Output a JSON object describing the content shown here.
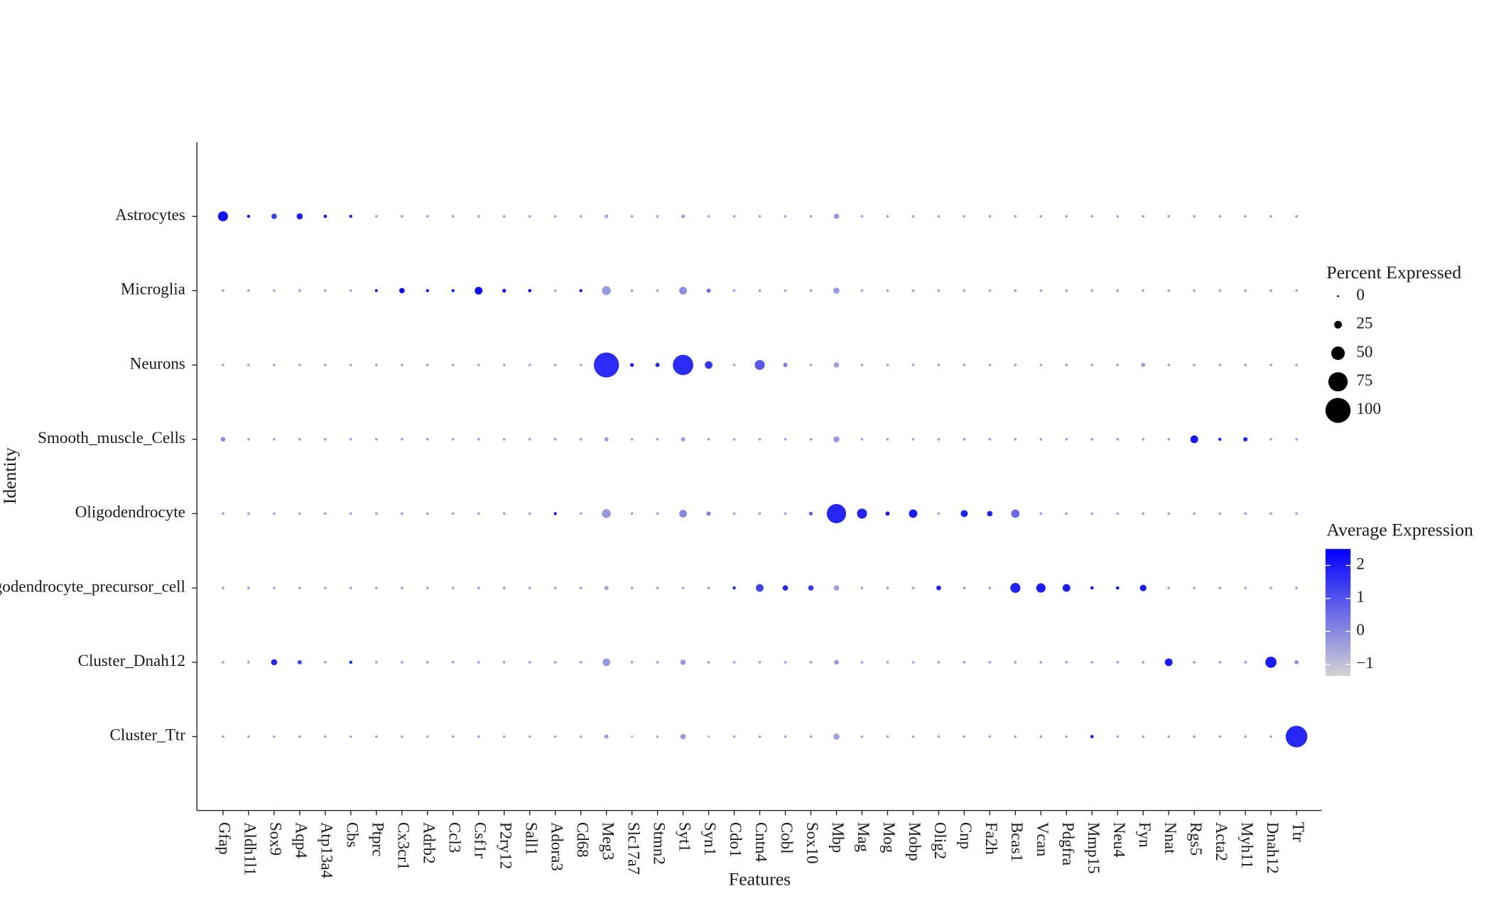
{
  "chart_data": {
    "type": "dot",
    "x_label": "Features",
    "y_label": "Identity",
    "categories": [
      "Gfap",
      "Aldh1l1",
      "Sox9",
      "Aqp4",
      "Atp13a4",
      "Cbs",
      "Ptprc",
      "Cx3cr1",
      "Adrb2",
      "Ccl3",
      "Csf1r",
      "P2ry12",
      "Sall1",
      "Adora3",
      "Cd68",
      "Meg3",
      "Slc17a7",
      "Stmn2",
      "Syt1",
      "Syn1",
      "Cdo1",
      "Cntn4",
      "Cobl",
      "Sox10",
      "Mbp",
      "Mag",
      "Mog",
      "Mobp",
      "Olig2",
      "Cnp",
      "Fa2h",
      "Bcas1",
      "Vcan",
      "Pdgfra",
      "Mmp15",
      "Neu4",
      "Fyn",
      "Nnat",
      "Rgs5",
      "Acta2",
      "Myh11",
      "Dnah12",
      "Ttr"
    ],
    "series": [
      {
        "name": "Astrocytes",
        "percent": [
          35,
          5,
          15,
          18,
          6,
          5,
          3,
          3,
          3,
          3,
          3,
          3,
          3,
          3,
          3,
          8,
          3,
          3,
          8,
          3,
          3,
          3,
          3,
          3,
          15,
          3,
          3,
          3,
          3,
          3,
          3,
          3,
          3,
          3,
          3,
          3,
          3,
          3,
          3,
          3,
          3,
          3,
          3
        ],
        "average": [
          2.2,
          2.3,
          1.5,
          2,
          2.2,
          2,
          -0.4,
          -0.4,
          -0.4,
          -0.4,
          -0.4,
          -0.4,
          -0.4,
          -0.4,
          -0.4,
          -0.6,
          -0.4,
          -0.4,
          -0.5,
          -0.4,
          -0.4,
          -0.4,
          -0.4,
          -0.4,
          -0.3,
          -0.4,
          -0.4,
          -0.4,
          -0.4,
          -0.4,
          -0.4,
          -0.4,
          -0.4,
          -0.4,
          -0.4,
          -0.4,
          -0.4,
          -0.4,
          -0.4,
          -0.4,
          -0.4,
          -0.4,
          -0.4
        ]
      },
      {
        "name": "Microglia",
        "percent": [
          3,
          3,
          3,
          3,
          3,
          3,
          4,
          15,
          5,
          5,
          25,
          8,
          6,
          3,
          5,
          30,
          3,
          3,
          25,
          10,
          3,
          3,
          3,
          3,
          18,
          3,
          3,
          3,
          3,
          3,
          3,
          3,
          3,
          3,
          3,
          3,
          3,
          3,
          3,
          3,
          3,
          3,
          3
        ],
        "average": [
          -0.4,
          -0.4,
          -0.4,
          -0.4,
          -0.4,
          -0.4,
          2.3,
          2.3,
          2.3,
          2.3,
          2.3,
          2.3,
          2.3,
          -0.4,
          2.3,
          -0.3,
          -0.4,
          -0.4,
          -0.1,
          0.5,
          -0.4,
          -0.4,
          -0.4,
          -0.4,
          -0.3,
          -0.4,
          -0.4,
          -0.4,
          -0.4,
          -0.4,
          -0.4,
          -0.4,
          -0.4,
          -0.4,
          -0.4,
          -0.4,
          -0.4,
          -0.4,
          -0.4,
          -0.4,
          -0.4,
          -0.4,
          -0.4
        ]
      },
      {
        "name": "Neurons",
        "percent": [
          3,
          3,
          3,
          3,
          3,
          3,
          3,
          3,
          3,
          3,
          3,
          3,
          3,
          3,
          3,
          100,
          8,
          10,
          80,
          25,
          3,
          35,
          10,
          3,
          15,
          3,
          3,
          3,
          3,
          3,
          3,
          3,
          3,
          3,
          3,
          3,
          10,
          3,
          3,
          3,
          3,
          3,
          3
        ],
        "average": [
          -0.4,
          -0.4,
          -0.4,
          -0.4,
          -0.4,
          -0.4,
          -0.4,
          -0.4,
          -0.4,
          -0.4,
          -0.4,
          -0.4,
          -0.4,
          -0.4,
          -0.4,
          1.7,
          2,
          1.8,
          1.7,
          1.5,
          -0.4,
          0.9,
          0.2,
          -0.4,
          -0.4,
          -0.4,
          -0.4,
          -0.4,
          -0.4,
          -0.4,
          -0.4,
          -0.4,
          -0.4,
          -0.4,
          -0.4,
          -0.4,
          -0.4,
          -0.4,
          -0.4,
          -0.4,
          -0.4,
          -0.4,
          -0.4
        ]
      },
      {
        "name": "Smooth_muscle_Cells",
        "percent": [
          12,
          3,
          3,
          3,
          3,
          3,
          3,
          3,
          3,
          3,
          3,
          3,
          3,
          3,
          3,
          10,
          3,
          3,
          10,
          3,
          3,
          3,
          3,
          3,
          18,
          3,
          3,
          3,
          3,
          3,
          3,
          3,
          3,
          3,
          3,
          3,
          3,
          3,
          25,
          5,
          10,
          3,
          3
        ],
        "average": [
          0,
          -0.4,
          -0.4,
          -0.4,
          -0.4,
          -0.4,
          -0.4,
          -0.4,
          -0.4,
          -0.4,
          -0.4,
          -0.4,
          -0.4,
          -0.4,
          -0.4,
          -0.3,
          -0.4,
          -0.4,
          -0.3,
          -0.4,
          -0.4,
          -0.4,
          -0.4,
          -0.4,
          -0.3,
          -0.4,
          -0.4,
          -0.4,
          -0.4,
          -0.4,
          -0.4,
          -0.4,
          -0.4,
          -0.4,
          -0.4,
          -0.4,
          -0.4,
          -0.4,
          2.1,
          2,
          2,
          -0.4,
          -0.4
        ]
      },
      {
        "name": "Oligodendrocyte",
        "percent": [
          3,
          3,
          3,
          3,
          3,
          3,
          3,
          3,
          3,
          3,
          3,
          3,
          3,
          5,
          3,
          30,
          3,
          3,
          25,
          10,
          3,
          3,
          3,
          8,
          75,
          35,
          10,
          28,
          3,
          22,
          15,
          28,
          3,
          3,
          3,
          3,
          3,
          3,
          3,
          3,
          3,
          3,
          3
        ],
        "average": [
          -0.4,
          -0.4,
          -0.4,
          -0.4,
          -0.4,
          -0.4,
          -0.4,
          -0.4,
          -0.4,
          -0.4,
          -0.4,
          -0.4,
          -0.4,
          2.2,
          -0.4,
          -0.3,
          -0.4,
          -0.4,
          0,
          0.2,
          -0.4,
          -0.4,
          -0.4,
          0.8,
          1.8,
          1.9,
          2,
          2,
          -0.4,
          1.9,
          1.9,
          0.6,
          -0.4,
          -0.4,
          -0.4,
          -0.4,
          -0.4,
          -0.4,
          -0.4,
          -0.4,
          -0.4,
          -0.4,
          -0.4
        ]
      },
      {
        "name": "Oligodendrocyte_precursor_cell",
        "percent": [
          3,
          3,
          3,
          3,
          3,
          3,
          3,
          3,
          3,
          3,
          3,
          3,
          3,
          3,
          3,
          10,
          3,
          3,
          3,
          3,
          5,
          25,
          15,
          15,
          15,
          3,
          3,
          3,
          12,
          3,
          3,
          35,
          32,
          25,
          6,
          6,
          20,
          3,
          3,
          3,
          3,
          3,
          3
        ],
        "average": [
          -0.4,
          -0.4,
          -0.4,
          -0.4,
          -0.4,
          -0.4,
          -0.4,
          -0.4,
          -0.4,
          -0.4,
          -0.4,
          -0.4,
          -0.4,
          -0.4,
          -0.4,
          -0.5,
          -0.4,
          -0.4,
          -0.4,
          -0.4,
          2,
          1.3,
          1.8,
          1.5,
          -0.4,
          -0.4,
          -0.4,
          -0.4,
          2,
          -0.4,
          -0.4,
          1.9,
          2,
          2,
          2,
          2.1,
          2,
          -0.4,
          -0.4,
          -0.4,
          -0.4,
          -0.4,
          -0.4
        ]
      },
      {
        "name": "Cluster_Dnah12",
        "percent": [
          3,
          3,
          18,
          10,
          3,
          5,
          3,
          3,
          3,
          3,
          3,
          3,
          3,
          3,
          3,
          25,
          3,
          3,
          15,
          3,
          3,
          3,
          3,
          3,
          12,
          3,
          3,
          3,
          3,
          3,
          3,
          3,
          3,
          3,
          3,
          3,
          3,
          25,
          3,
          3,
          3,
          40,
          10
        ],
        "average": [
          -0.4,
          -0.4,
          1.8,
          1.2,
          -0.4,
          2,
          -0.4,
          -0.4,
          -0.4,
          -0.4,
          -0.4,
          -0.4,
          -0.4,
          -0.4,
          -0.4,
          -0.3,
          -0.4,
          -0.4,
          -0.3,
          -0.4,
          -0.4,
          -0.4,
          -0.4,
          -0.4,
          -0.3,
          -0.4,
          -0.4,
          -0.4,
          -0.4,
          -0.4,
          -0.4,
          -0.4,
          -0.4,
          -0.4,
          -0.4,
          -0.4,
          -0.4,
          2,
          -0.4,
          -0.4,
          -0.4,
          2,
          -0.2
        ]
      },
      {
        "name": "Cluster_Ttr",
        "percent": [
          3,
          3,
          3,
          3,
          3,
          3,
          3,
          3,
          3,
          3,
          3,
          3,
          3,
          3,
          3,
          10,
          1,
          3,
          15,
          1,
          3,
          3,
          3,
          3,
          18,
          3,
          3,
          3,
          3,
          3,
          3,
          3,
          3,
          3,
          6,
          3,
          3,
          3,
          3,
          3,
          3,
          3,
          85
        ],
        "average": [
          -0.4,
          -0.4,
          -0.4,
          -0.4,
          -0.4,
          -0.4,
          -0.4,
          -0.4,
          -0.4,
          -0.4,
          -0.4,
          -0.4,
          -0.4,
          -0.4,
          -0.4,
          -0.4,
          -0.6,
          -0.4,
          -0.3,
          -0.6,
          -0.4,
          -0.4,
          -0.4,
          -0.4,
          -0.4,
          -0.4,
          -0.4,
          -0.4,
          -0.4,
          -0.4,
          -0.4,
          -0.4,
          -0.4,
          -0.4,
          2,
          -0.4,
          -0.4,
          -0.4,
          -0.4,
          -0.4,
          -0.4,
          -0.4,
          1.8
        ]
      }
    ],
    "size_legend": {
      "title": "Percent Expressed",
      "values": [
        0,
        25,
        50,
        75,
        100
      ],
      "color": "#000000"
    },
    "color_legend": {
      "title": "Average Expression",
      "lim": [
        -1.35,
        2.5
      ],
      "ticks": [
        {
          "value": -1,
          "label": "−1"
        },
        0,
        1,
        2
      ],
      "low": "#d3d3d3",
      "high": "#0000ff"
    },
    "size_lim": [
      0,
      100
    ]
  }
}
